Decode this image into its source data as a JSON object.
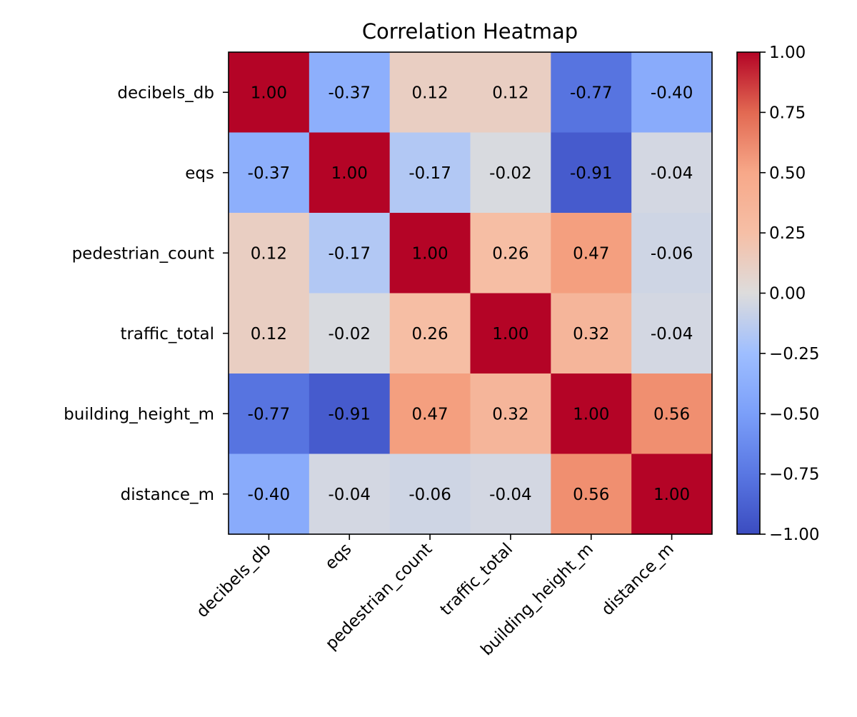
{
  "chart_data": {
    "type": "heatmap",
    "title": "Correlation Heatmap",
    "xlabel": "",
    "ylabel": "",
    "row_labels": [
      "decibels_db",
      "eqs",
      "pedestrian_count",
      "traffic_total",
      "building_height_m",
      "distance_m"
    ],
    "col_labels": [
      "decibels_db",
      "eqs",
      "pedestrian_count",
      "traffic_total",
      "building_height_m",
      "distance_m"
    ],
    "values": [
      [
        1.0,
        -0.37,
        0.12,
        0.12,
        -0.77,
        -0.4
      ],
      [
        -0.37,
        1.0,
        -0.17,
        -0.02,
        -0.91,
        -0.04
      ],
      [
        0.12,
        -0.17,
        1.0,
        0.26,
        0.47,
        -0.06
      ],
      [
        0.12,
        -0.02,
        0.26,
        1.0,
        0.32,
        -0.04
      ],
      [
        -0.77,
        -0.91,
        0.47,
        0.32,
        1.0,
        0.56
      ],
      [
        -0.4,
        -0.04,
        -0.06,
        -0.04,
        0.56,
        1.0
      ]
    ],
    "value_range": [
      -1.0,
      1.0
    ],
    "colormap": "coolwarm",
    "colormap_stops": [
      "#3b4cc0",
      "#dddddd",
      "#b40426"
    ],
    "colorbar": {
      "ticks": [
        -1.0,
        -0.75,
        -0.5,
        -0.25,
        0.0,
        0.25,
        0.5,
        0.75,
        1.0
      ],
      "tick_labels": [
        "−1.00",
        "−0.75",
        "−0.50",
        "−0.25",
        "0.00",
        "0.25",
        "0.50",
        "0.75",
        "1.00"
      ]
    },
    "grid": false,
    "legend": "colorbar-right"
  }
}
